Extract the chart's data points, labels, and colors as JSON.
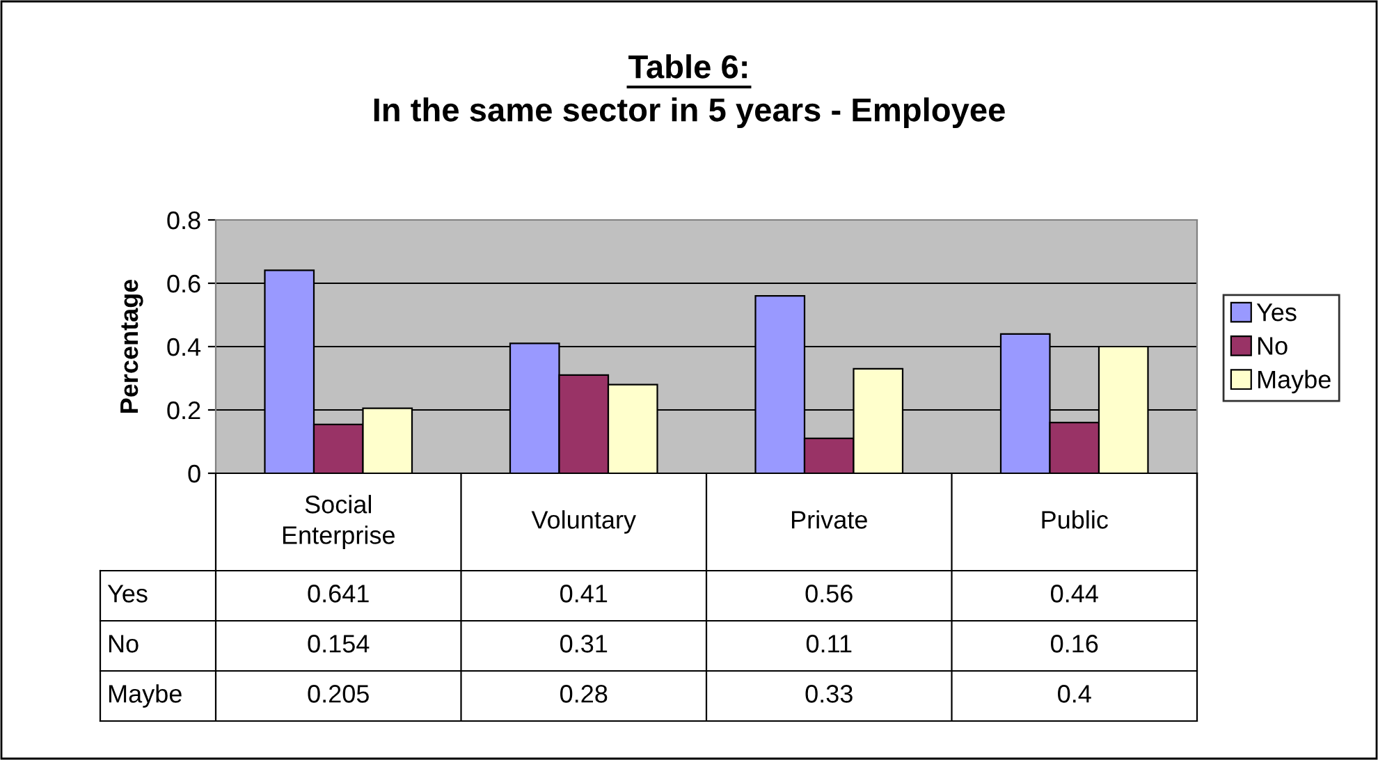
{
  "chart_data": {
    "type": "bar",
    "title": "Table 6:",
    "subtitle": "In the same sector in 5 years - Employee",
    "ylabel": "Percentage",
    "categories": [
      "Social Enterprise",
      "Voluntary",
      "Private",
      "Public"
    ],
    "series": [
      {
        "name": "Yes",
        "color": "#9999ff",
        "values": [
          0.641,
          0.41,
          0.56,
          0.44
        ]
      },
      {
        "name": "No",
        "color": "#993366",
        "values": [
          0.154,
          0.31,
          0.11,
          0.16
        ]
      },
      {
        "name": "Maybe",
        "color": "#ffffcc",
        "values": [
          0.205,
          0.28,
          0.33,
          0.4
        ]
      }
    ],
    "ylim": [
      0,
      0.8
    ],
    "yticks": [
      0,
      0.2,
      0.4,
      0.6,
      0.8
    ],
    "grid": "y",
    "legend": "right",
    "data_labels": true
  }
}
